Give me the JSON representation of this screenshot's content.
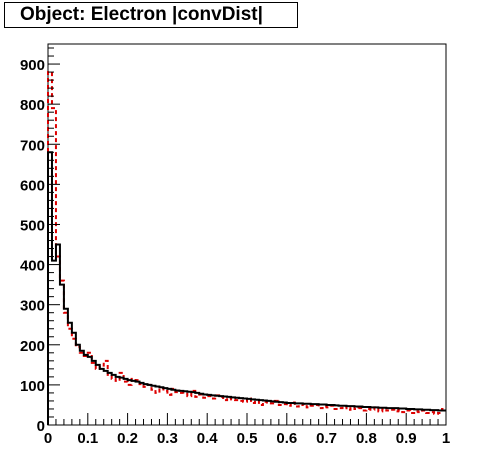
{
  "chart_data": {
    "type": "line",
    "title": "Object: Electron |convDist|",
    "xlabel": "",
    "ylabel": "",
    "xlim": [
      0,
      1
    ],
    "ylim": [
      0,
      950
    ],
    "x_ticks": [
      "0",
      "0.1",
      "0.2",
      "0.3",
      "0.4",
      "0.5",
      "0.6",
      "0.7",
      "0.8",
      "0.9",
      "1"
    ],
    "y_ticks": [
      "0",
      "100",
      "200",
      "300",
      "400",
      "500",
      "600",
      "700",
      "800",
      "900"
    ],
    "bin_width": 0.01,
    "grid": false,
    "legend": "none",
    "series": [
      {
        "style": "solid",
        "color": "#000000",
        "values": [
          680,
          410,
          450,
          350,
          290,
          255,
          230,
          200,
          185,
          175,
          170,
          160,
          150,
          140,
          135,
          130,
          125,
          120,
          118,
          115,
          112,
          110,
          108,
          105,
          102,
          100,
          98,
          96,
          94,
          92,
          90,
          88,
          86,
          85,
          84,
          83,
          82,
          80,
          78,
          76,
          75,
          74,
          73,
          72,
          71,
          70,
          69,
          68,
          67,
          66,
          65,
          64,
          63,
          62,
          61,
          60,
          59,
          58,
          57,
          56,
          55,
          55,
          54,
          54,
          53,
          53,
          52,
          52,
          51,
          51,
          50,
          50,
          49,
          48,
          48,
          47,
          47,
          46,
          46,
          45,
          45,
          44,
          44,
          43,
          43,
          42,
          42,
          42,
          41,
          41,
          40,
          40,
          39,
          39,
          38,
          38,
          37,
          37,
          36,
          36
        ]
      },
      {
        "style": "dashed",
        "color": "#dd0000",
        "values": [
          880,
          790,
          420,
          360,
          280,
          240,
          215,
          195,
          180,
          172,
          180,
          155,
          140,
          148,
          160,
          125,
          115,
          110,
          130,
          108,
          100,
          115,
          112,
          102,
          95,
          100,
          88,
          80,
          92,
          85,
          75,
          90,
          82,
          80,
          78,
          72,
          85,
          70,
          76,
          68,
          72,
          66,
          74,
          70,
          62,
          68,
          64,
          62,
          60,
          58,
          66,
          55,
          60,
          50,
          58,
          56,
          54,
          60,
          50,
          52,
          48,
          56,
          46,
          50,
          52,
          44,
          48,
          50,
          42,
          46,
          44,
          48,
          40,
          42,
          46,
          38,
          44,
          40,
          42,
          36,
          40,
          38,
          44,
          34,
          40,
          36,
          38,
          34,
          36,
          32,
          36,
          30,
          34,
          32,
          36,
          30,
          32,
          28,
          30,
          40
        ]
      }
    ]
  }
}
